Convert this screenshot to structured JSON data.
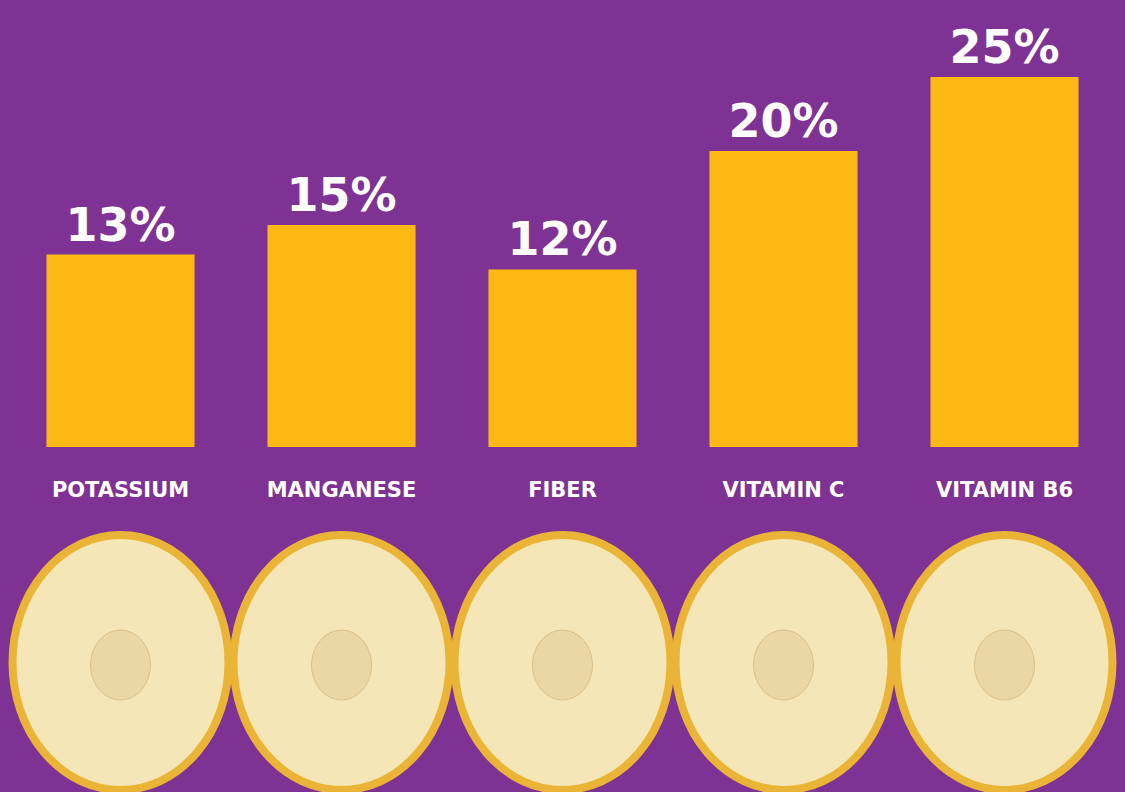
{
  "chart_data": {
    "type": "bar",
    "categories": [
      "POTASSIUM",
      "MANGANESE",
      "FIBER",
      "VITAMIN C",
      "VITAMIN B6"
    ],
    "values": [
      13,
      15,
      12,
      20,
      25
    ],
    "value_labels": [
      "13%",
      "15%",
      "12%",
      "20%",
      "25%"
    ],
    "data_labels": true,
    "color": "#fdb913",
    "ylim": [
      0,
      25
    ],
    "tick_labels": "x",
    "grid": false
  }
}
